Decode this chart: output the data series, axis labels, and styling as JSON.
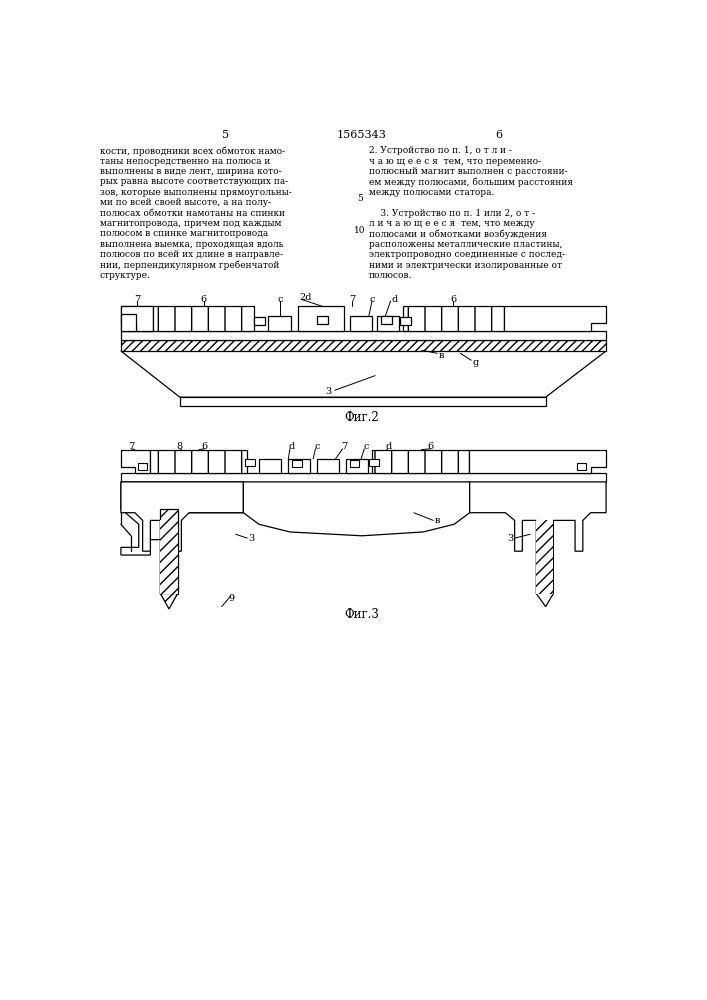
{
  "page_number_left": "5",
  "page_number_right": "6",
  "patent_number": "1565343",
  "background_color": "#ffffff",
  "line_color": "#000000",
  "text_left": "кости, проводники всех обмоток намо-\nтаны непосредственно на полюса и\nвыполнены в виде лент, ширина кото-\nрых равна высоте соответствующих па-\nзов, которые выполнены прямоугольны-\nми по всей своей высоте, а на полу-\nполюсах обмотки намотаны на спинки\nмагнитопровода, причем под каждым\nполюсом в спинке магнитопровода\nвыполнена выемка, проходящая вдоль\nполюсов по всей их длине в направле-\nнии, перпендикулярном гребенчатой\nструктуре.",
  "text_right": "2. Устройство по п. 1, о т л и -\nч а ю щ е е с я  тем, что переменно-\nполюсный магнит выполнен с расстояни-\nем между полюсами, большим расстояния\nмежду полюсами статора.\n\n    3. Устройство по п. 1 или 2, о т -\nл и ч а ю щ е е с я  тем, что между\nполюсами и обмотками возбуждения\nрасположены металлические пластины,\nэлектропроводно соединенные с послед-\nними и электрически изолированные от\nполюсов.",
  "fig2_caption": "Фиг.2",
  "fig3_caption": "Фиг.3",
  "linenum5": "5",
  "linenum10": "10"
}
